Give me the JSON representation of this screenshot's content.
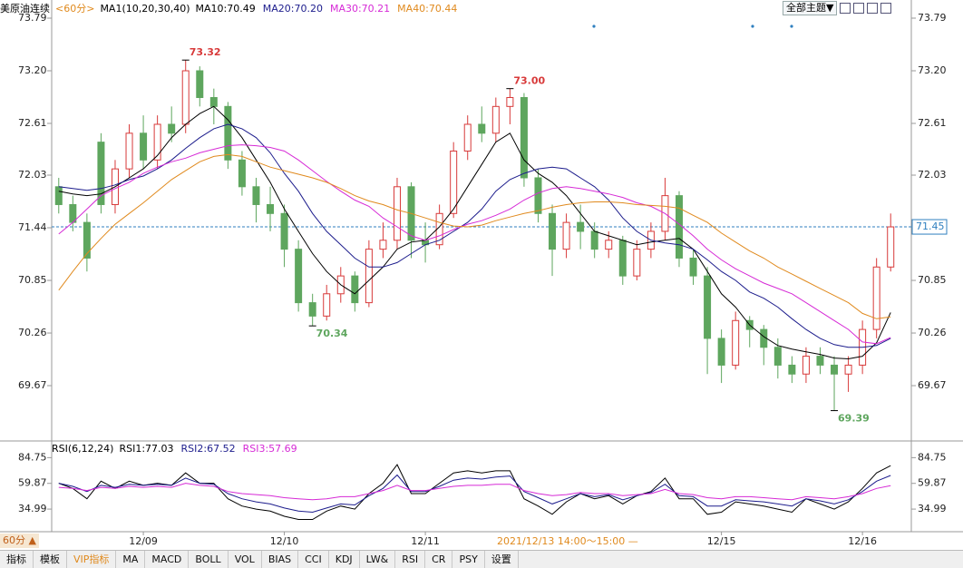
{
  "chart_data": {
    "type": "candlestick",
    "title": "美原油连续",
    "period": "<60分>",
    "indicator_title": "MA1(10,20,30,40)",
    "theme_button": "全部主题▼",
    "period_button": "60分 ▲",
    "cursor_label": "2021/12/13 14:00～15:00 —",
    "categories": [
      null,
      null,
      null,
      null,
      null,
      null,
      "12/09",
      null,
      null,
      null,
      null,
      null,
      null,
      null,
      null,
      null,
      "12/10",
      null,
      null,
      null,
      null,
      null,
      null,
      null,
      null,
      null,
      "12/11",
      null,
      null,
      null,
      null,
      null,
      null,
      null,
      null,
      null,
      null,
      null,
      null,
      null,
      null,
      null,
      null,
      null,
      null,
      null,
      null,
      "12/15",
      null,
      null,
      null,
      null,
      null,
      null,
      null,
      null,
      null,
      "12/16",
      null,
      null
    ],
    "candles": {
      "open": [
        71.9,
        71.7,
        71.5,
        72.4,
        71.7,
        72.1,
        72.5,
        72.2,
        72.6,
        72.6,
        73.2,
        72.9,
        72.8,
        72.2,
        71.9,
        71.7,
        71.6,
        71.2,
        70.6,
        70.45,
        70.7,
        70.9,
        70.6,
        71.2,
        71.3,
        71.9,
        71.3,
        71.25,
        71.6,
        72.3,
        72.6,
        72.5,
        72.8,
        72.9,
        72.0,
        71.6,
        71.2,
        71.5,
        71.4,
        71.2,
        71.3,
        70.9,
        71.2,
        71.4,
        71.8,
        71.1,
        70.9,
        70.2,
        69.9,
        70.4,
        70.3,
        70.1,
        69.9,
        69.8,
        70.0,
        69.9,
        69.8,
        69.9,
        70.3,
        71.0
      ],
      "close": [
        71.7,
        71.5,
        71.1,
        71.7,
        72.1,
        72.5,
        72.2,
        72.6,
        72.5,
        73.2,
        72.9,
        72.8,
        72.2,
        71.9,
        71.7,
        71.6,
        71.2,
        70.6,
        70.45,
        70.7,
        70.9,
        70.6,
        71.2,
        71.3,
        71.9,
        71.3,
        71.25,
        71.6,
        72.3,
        72.6,
        72.5,
        72.8,
        72.9,
        72.0,
        71.6,
        71.2,
        71.5,
        71.4,
        71.2,
        71.3,
        70.9,
        71.2,
        71.4,
        71.8,
        71.1,
        70.9,
        70.2,
        69.9,
        70.4,
        70.3,
        70.1,
        69.9,
        69.8,
        70.0,
        69.9,
        69.8,
        69.9,
        70.3,
        71.0,
        71.45
      ],
      "high": [
        72.0,
        71.8,
        71.6,
        72.5,
        72.2,
        72.6,
        72.7,
        72.7,
        72.8,
        73.32,
        73.25,
        73.0,
        72.85,
        72.3,
        72.0,
        71.9,
        71.7,
        71.3,
        70.7,
        70.8,
        71.0,
        70.95,
        71.3,
        71.5,
        72.0,
        71.95,
        71.5,
        71.7,
        72.4,
        72.7,
        72.8,
        72.9,
        73.0,
        72.95,
        72.1,
        71.7,
        71.6,
        71.7,
        71.5,
        71.4,
        71.35,
        71.3,
        71.5,
        72.0,
        71.85,
        71.2,
        71.0,
        70.3,
        70.5,
        70.45,
        70.35,
        70.2,
        70.0,
        70.1,
        70.1,
        70.0,
        70.0,
        70.4,
        71.1,
        71.6
      ],
      "low": [
        71.6,
        71.4,
        70.95,
        71.6,
        71.6,
        72.0,
        72.1,
        72.1,
        72.4,
        72.5,
        72.8,
        72.6,
        72.1,
        71.8,
        71.5,
        71.4,
        71.0,
        70.5,
        70.34,
        70.4,
        70.6,
        70.5,
        70.55,
        71.1,
        71.2,
        71.1,
        71.05,
        71.2,
        71.55,
        72.2,
        72.4,
        72.4,
        72.6,
        71.9,
        71.5,
        70.9,
        71.1,
        71.2,
        71.1,
        71.1,
        70.8,
        70.85,
        71.1,
        71.3,
        71.0,
        70.8,
        69.8,
        69.7,
        69.85,
        70.1,
        69.9,
        69.75,
        69.7,
        69.7,
        69.8,
        69.39,
        69.6,
        69.8,
        70.2,
        70.95
      ]
    },
    "up_color": "#d83a3a",
    "down_color": "#5ea65e",
    "high_labels": [
      null,
      null,
      null,
      null,
      null,
      null,
      null,
      null,
      null,
      "73.32",
      null,
      null,
      null,
      null,
      null,
      null,
      null,
      null,
      null,
      null,
      null,
      null,
      null,
      null,
      null,
      null,
      null,
      null,
      null,
      null,
      null,
      null,
      "73.00",
      null,
      null,
      null,
      null,
      null,
      null,
      null,
      null,
      null,
      null,
      null,
      null,
      null,
      null,
      null,
      null,
      null,
      null,
      null,
      null,
      null,
      null,
      null,
      null,
      null,
      null,
      null
    ],
    "low_labels": [
      null,
      null,
      null,
      null,
      null,
      null,
      null,
      null,
      null,
      null,
      null,
      null,
      null,
      null,
      null,
      null,
      null,
      null,
      "70.34",
      null,
      null,
      null,
      null,
      null,
      null,
      null,
      null,
      null,
      null,
      null,
      null,
      null,
      null,
      null,
      null,
      null,
      null,
      null,
      null,
      null,
      null,
      null,
      null,
      null,
      null,
      null,
      null,
      null,
      null,
      null,
      null,
      null,
      null,
      null,
      null,
      "69.39",
      null,
      null,
      null,
      null
    ],
    "series": [
      {
        "name": "MA10:70.49",
        "color": "#000000",
        "values": [
          71.85,
          71.82,
          71.8,
          71.82,
          71.9,
          72.0,
          72.1,
          72.25,
          72.45,
          72.6,
          72.72,
          72.8,
          72.65,
          72.45,
          72.2,
          71.95,
          71.65,
          71.4,
          71.15,
          70.95,
          70.8,
          70.7,
          70.85,
          71.0,
          71.2,
          71.28,
          71.3,
          71.45,
          71.65,
          71.9,
          72.15,
          72.4,
          72.5,
          72.2,
          72.05,
          71.95,
          71.8,
          71.6,
          71.4,
          71.35,
          71.3,
          71.25,
          71.28,
          71.3,
          71.32,
          71.2,
          70.95,
          70.7,
          70.55,
          70.35,
          70.22,
          70.12,
          70.08,
          70.05,
          70.02,
          69.98,
          69.97,
          70.0,
          70.15,
          70.49
        ]
      },
      {
        "name": "MA20:70.20",
        "color": "#1c1c8c",
        "values": [
          71.9,
          71.88,
          71.86,
          71.88,
          71.92,
          71.98,
          72.02,
          72.1,
          72.2,
          72.33,
          72.45,
          72.55,
          72.6,
          72.55,
          72.45,
          72.28,
          72.05,
          71.85,
          71.6,
          71.4,
          71.25,
          71.1,
          71.0,
          71.0,
          71.05,
          71.15,
          71.25,
          71.3,
          71.4,
          71.5,
          71.65,
          71.85,
          71.98,
          72.05,
          72.1,
          72.12,
          72.1,
          72.0,
          71.9,
          71.75,
          71.55,
          71.4,
          71.3,
          71.27,
          71.25,
          71.2,
          71.08,
          70.95,
          70.85,
          70.72,
          70.65,
          70.55,
          70.42,
          70.3,
          70.2,
          70.13,
          70.1,
          70.1,
          70.12,
          70.2
        ]
      },
      {
        "name": "MA30:70.21",
        "color": "#d62ad6",
        "values": [
          71.37,
          71.5,
          71.65,
          71.8,
          71.88,
          71.95,
          72.05,
          72.12,
          72.18,
          72.22,
          72.28,
          72.32,
          72.36,
          72.37,
          72.36,
          72.34,
          72.3,
          72.2,
          72.08,
          71.96,
          71.85,
          71.75,
          71.68,
          71.55,
          71.45,
          71.35,
          71.3,
          71.35,
          71.42,
          71.48,
          71.52,
          71.58,
          71.65,
          71.75,
          71.83,
          71.88,
          71.9,
          71.88,
          71.85,
          71.82,
          71.78,
          71.72,
          71.68,
          71.6,
          71.48,
          71.35,
          71.2,
          71.08,
          70.98,
          70.9,
          70.82,
          70.76,
          70.7,
          70.6,
          70.5,
          70.4,
          70.3,
          70.16,
          70.14,
          70.21
        ]
      },
      {
        "name": "MA40:70.44",
        "color": "#e08a1e",
        "values": [
          70.74,
          70.95,
          71.15,
          71.32,
          71.48,
          71.6,
          71.72,
          71.85,
          71.98,
          72.08,
          72.18,
          72.24,
          72.26,
          72.24,
          72.18,
          72.12,
          72.08,
          72.04,
          72.0,
          71.95,
          71.88,
          71.8,
          71.74,
          71.7,
          71.64,
          71.6,
          71.55,
          71.5,
          71.46,
          71.45,
          71.47,
          71.52,
          71.56,
          71.6,
          71.63,
          71.67,
          71.7,
          71.72,
          71.73,
          71.73,
          71.72,
          71.7,
          71.69,
          71.68,
          71.66,
          71.58,
          71.5,
          71.38,
          71.28,
          71.18,
          71.1,
          71.0,
          70.92,
          70.84,
          70.76,
          70.68,
          70.6,
          70.48,
          70.42,
          70.44
        ]
      }
    ],
    "ylim": [
      69.06,
      73.79
    ],
    "yticks": [
      73.79,
      {
        "value": 73.2,
        "label": "73.20"
      },
      72.61,
      72.03,
      71.44,
      70.85,
      70.26,
      69.67
    ],
    "rsi": {
      "title": "RSI(6,12,24)",
      "ylim": [
        14,
        100
      ],
      "yticks": [
        84.75,
        59.87,
        34.99
      ],
      "series": [
        {
          "name": "RSI1:77.03",
          "color": "#000000",
          "values": [
            60,
            55,
            45,
            62,
            55,
            62,
            58,
            60,
            58,
            70,
            60,
            60,
            45,
            38,
            35,
            33,
            28,
            25,
            25,
            33,
            38,
            35,
            50,
            60,
            78,
            50,
            50,
            60,
            70,
            72,
            70,
            72,
            72,
            45,
            38,
            30,
            42,
            50,
            45,
            48,
            40,
            48,
            52,
            65,
            45,
            45,
            30,
            32,
            42,
            40,
            38,
            35,
            32,
            45,
            40,
            35,
            42,
            55,
            70,
            77.03
          ]
        },
        {
          "name": "RSI2:67.52",
          "color": "#1c1c8c",
          "values": [
            60,
            57,
            52,
            58,
            56,
            59,
            58,
            59,
            58,
            65,
            60,
            59,
            50,
            45,
            42,
            40,
            36,
            33,
            32,
            36,
            40,
            39,
            48,
            55,
            68,
            52,
            52,
            57,
            63,
            65,
            64,
            66,
            67,
            52,
            46,
            40,
            45,
            50,
            47,
            49,
            44,
            48,
            51,
            59,
            48,
            47,
            38,
            38,
            44,
            43,
            42,
            40,
            38,
            45,
            43,
            40,
            44,
            52,
            62,
            67.52
          ]
        },
        {
          "name": "RSI3:57.69",
          "color": "#d62ad6",
          "values": [
            56,
            55,
            53,
            56,
            55,
            57,
            56,
            57,
            56,
            60,
            58,
            57,
            52,
            50,
            49,
            48,
            46,
            45,
            44,
            45,
            47,
            47,
            50,
            53,
            58,
            53,
            53,
            55,
            57,
            58,
            58,
            59,
            59,
            53,
            50,
            48,
            49,
            51,
            50,
            50,
            48,
            49,
            50,
            54,
            50,
            49,
            46,
            45,
            47,
            47,
            46,
            45,
            44,
            47,
            46,
            45,
            47,
            50,
            55,
            57.69
          ]
        }
      ]
    },
    "tabs": [
      "指标",
      "模板",
      "VIP指标",
      "MA",
      "MACD",
      "BOLL",
      "VOL",
      "BIAS",
      "CCI",
      "KDJ",
      "LW&",
      "RSI",
      "CR",
      "PSY",
      "设置"
    ]
  }
}
